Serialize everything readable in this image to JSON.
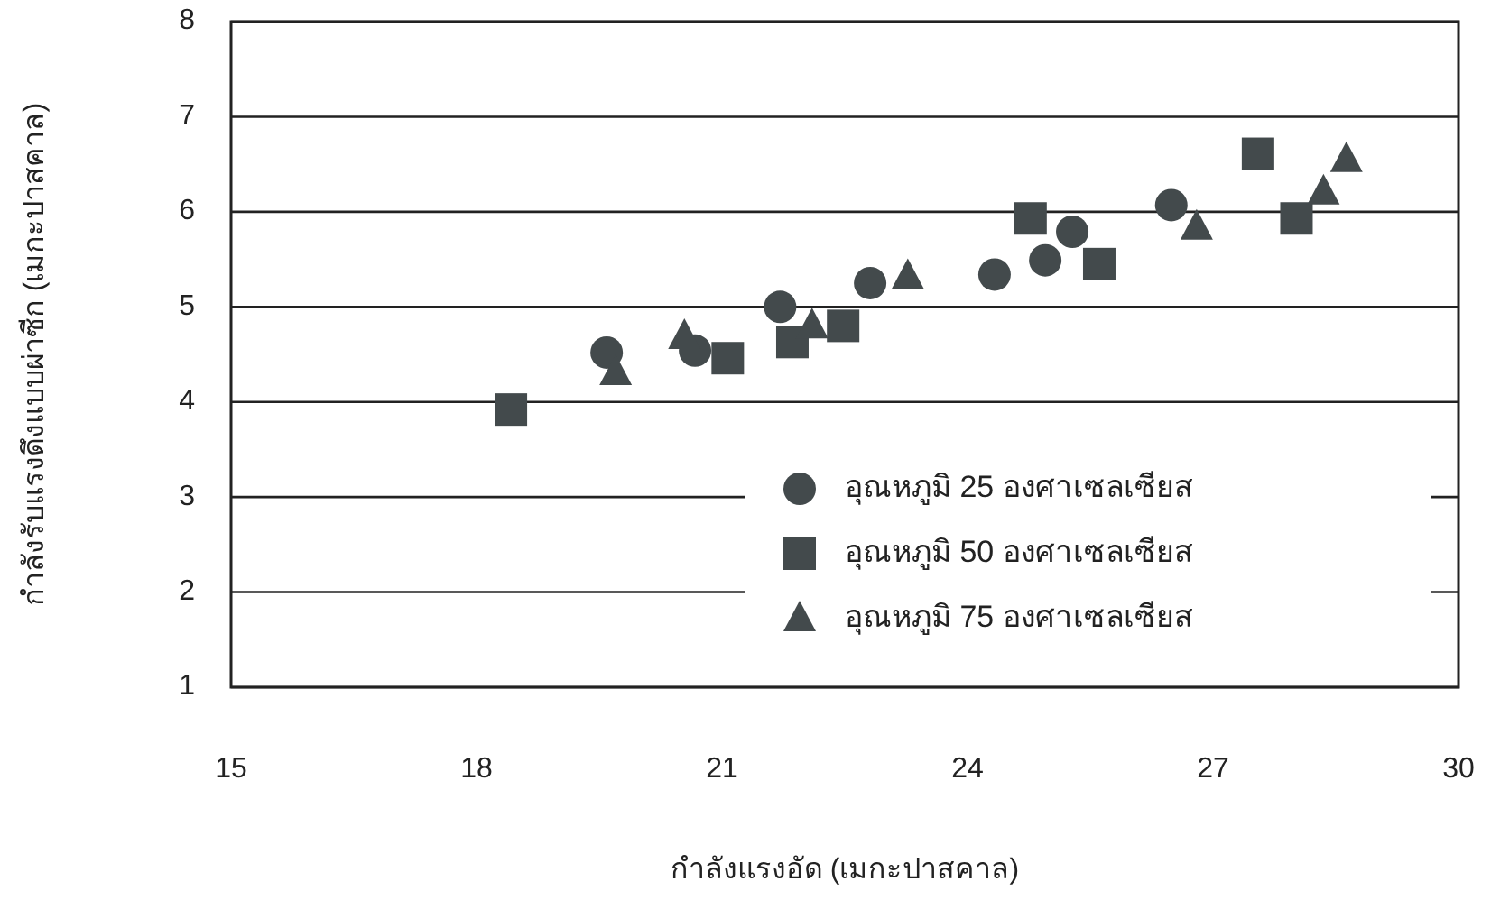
{
  "chart_data": {
    "type": "scatter",
    "xlabel": "กำลังแรงอัด (เมกะปาสคาล)",
    "ylabel": "กำลังรับแรงดึงแบบผ่าซีก (เมกะปาสคาล)",
    "xlim": [
      15,
      30
    ],
    "xticks": [
      15,
      18,
      21,
      24,
      27,
      30
    ],
    "ylim": [
      1,
      8
    ],
    "yticks": [
      1,
      2,
      3,
      4,
      5,
      6,
      7,
      8
    ],
    "grid": "y",
    "legend": "bottom right",
    "series": [
      {
        "name": "อุณหภูมิ 25 องศาเซลเซียส",
        "color": "#434a4c",
        "marker": "circle",
        "x": [
          19.59,
          20.67,
          21.71,
          22.81,
          24.33,
          24.95,
          25.28,
          26.49
        ],
        "values": [
          4.52,
          4.54,
          5.0,
          5.25,
          5.34,
          5.49,
          5.79,
          6.07
        ]
      },
      {
        "name": "อุณหภูมิ 50 องศาเซลเซียส",
        "color": "#434a4c",
        "marker": "square",
        "x": [
          18.42,
          21.07,
          21.86,
          22.48,
          24.77,
          25.61,
          27.55,
          28.02
        ],
        "values": [
          3.92,
          4.46,
          4.63,
          4.8,
          5.93,
          5.45,
          6.61,
          5.93
        ]
      },
      {
        "name": "อุณหภูมิ 75 องศาเซลเซียส",
        "color": "#434a4c",
        "marker": "triangle",
        "x": [
          19.7,
          20.54,
          22.1,
          23.27,
          26.8,
          28.35,
          28.63
        ],
        "values": [
          4.31,
          4.69,
          4.8,
          5.32,
          5.84,
          6.21,
          6.55
        ]
      }
    ]
  }
}
